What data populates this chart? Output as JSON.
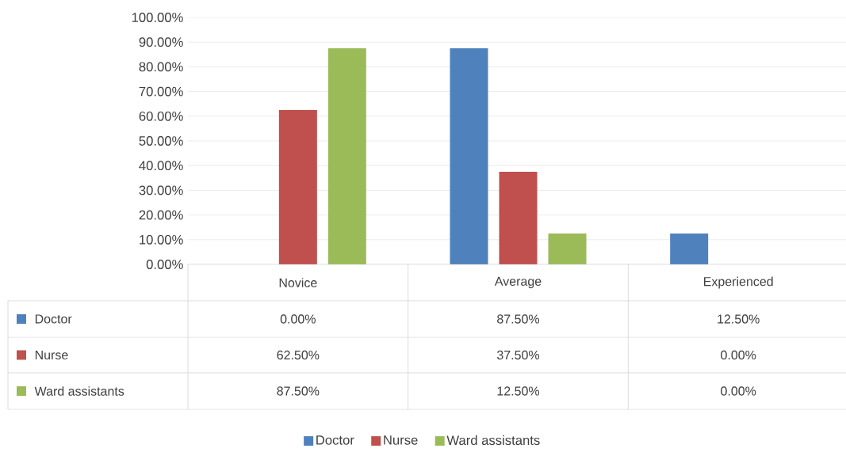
{
  "chart_data": {
    "type": "bar",
    "categories": [
      "Novice",
      "Average",
      "Experienced"
    ],
    "series": [
      {
        "name": "Doctor",
        "color": "#4f81bd",
        "values": [
          0,
          87.5,
          12.5
        ],
        "value_labels": [
          "0.00%",
          "87.50%",
          "12.50%"
        ]
      },
      {
        "name": "Nurse",
        "color": "#c0504d",
        "values": [
          62.5,
          37.5,
          0
        ],
        "value_labels": [
          "62.50%",
          "37.50%",
          "0.00%"
        ]
      },
      {
        "name": "Ward assistants",
        "color": "#9bbb59",
        "values": [
          87.5,
          12.5,
          0
        ],
        "value_labels": [
          "87.50%",
          "12.50%",
          "0.00%"
        ]
      }
    ],
    "ylim": [
      0,
      100
    ],
    "yticks": [
      {
        "value": 0,
        "label": "0.00%"
      },
      {
        "value": 10,
        "label": "10.00%"
      },
      {
        "value": 20,
        "label": "20.00%"
      },
      {
        "value": 30,
        "label": "30.00%"
      },
      {
        "value": 40,
        "label": "40.00%"
      },
      {
        "value": 50,
        "label": "50.00%"
      },
      {
        "value": 60,
        "label": "60.00%"
      },
      {
        "value": 70,
        "label": "70.00%"
      },
      {
        "value": 80,
        "label": "80.00%"
      },
      {
        "value": 90,
        "label": "90.00%"
      },
      {
        "value": 100,
        "label": "100.00%"
      }
    ],
    "grid": "y",
    "legend": "bottom"
  }
}
